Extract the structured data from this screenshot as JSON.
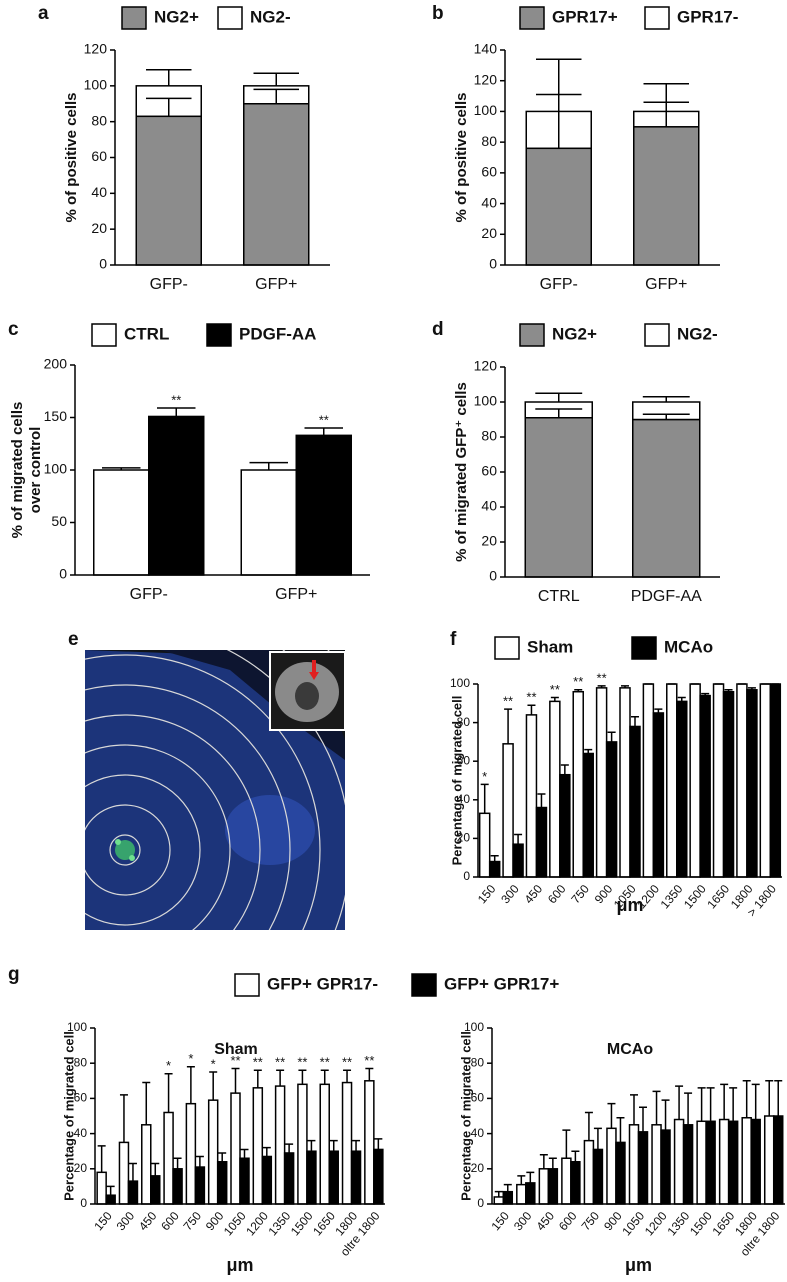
{
  "chart_data": [
    {
      "panel": "a",
      "type": "bar",
      "stacked": true,
      "categories": [
        "GFP-",
        "GFP+"
      ],
      "series": [
        {
          "name": "NG2+",
          "color": "#8c8c8c",
          "values": [
            83,
            90
          ],
          "errors": [
            10,
            8
          ]
        },
        {
          "name": "NG2-",
          "color": "#ffffff",
          "values": [
            17,
            10
          ],
          "errors": [
            9,
            7
          ]
        }
      ],
      "ylabel": "% of positive cells",
      "ylim": [
        0,
        120
      ],
      "yticks": [
        0,
        20,
        40,
        60,
        80,
        100,
        120
      ]
    },
    {
      "panel": "b",
      "type": "bar",
      "stacked": true,
      "categories": [
        "GFP-",
        "GFP+"
      ],
      "series": [
        {
          "name": "GPR17+",
          "color": "#8c8c8c",
          "values": [
            76,
            90
          ],
          "errors": [
            35,
            16
          ]
        },
        {
          "name": "GPR17-",
          "color": "#ffffff",
          "values": [
            24,
            10
          ],
          "errors": [
            34,
            18
          ]
        }
      ],
      "ylabel": "% of positive cells",
      "ylim": [
        0,
        140
      ],
      "yticks": [
        0,
        20,
        40,
        60,
        80,
        100,
        120,
        140
      ]
    },
    {
      "panel": "c",
      "type": "bar",
      "stacked": false,
      "categories": [
        "GFP-",
        "GFP+"
      ],
      "series": [
        {
          "name": "CTRL",
          "color": "#ffffff",
          "values": [
            100,
            100
          ],
          "errors": [
            2,
            7
          ]
        },
        {
          "name": "PDGF-AA",
          "color": "#000000",
          "values": [
            151,
            133
          ],
          "errors": [
            8,
            7
          ],
          "annotations": [
            "**",
            "**"
          ]
        }
      ],
      "ylabel": [
        "% of migrated cells",
        "over control"
      ],
      "ylim": [
        0,
        200
      ],
      "yticks": [
        0,
        50,
        100,
        150,
        200
      ]
    },
    {
      "panel": "d",
      "type": "bar",
      "stacked": true,
      "categories": [
        "CTRL",
        "PDGF-AA"
      ],
      "series": [
        {
          "name": "NG2+",
          "color": "#8c8c8c",
          "values": [
            91,
            90
          ],
          "errors": [
            5,
            3
          ]
        },
        {
          "name": "NG2-",
          "color": "#ffffff",
          "values": [
            9,
            10
          ],
          "errors": [
            5,
            3
          ]
        }
      ],
      "ylabel": "% of migrated GFP⁺ cells",
      "ylim": [
        0,
        120
      ],
      "yticks": [
        0,
        20,
        40,
        60,
        80,
        100,
        120
      ]
    },
    {
      "panel": "e",
      "type": "image"
    },
    {
      "panel": "f",
      "type": "bar",
      "stacked": false,
      "categories": [
        "150",
        "300",
        "450",
        "600",
        "750",
        "900",
        "1050",
        "1200",
        "1350",
        "1500",
        "1650",
        "1800",
        "> 1800"
      ],
      "series": [
        {
          "name": "Sham",
          "color": "#ffffff",
          "values": [
            33,
            69,
            84,
            91,
            96,
            98,
            98,
            100,
            100,
            100,
            100,
            100,
            100
          ],
          "errors": [
            15,
            18,
            5,
            2,
            1,
            1,
            1,
            0,
            0,
            0,
            0,
            0,
            0
          ],
          "annotations": [
            "*",
            "**",
            "**",
            "**",
            "**",
            "**",
            null,
            null,
            null,
            null,
            null,
            null,
            null
          ]
        },
        {
          "name": "MCAo",
          "color": "#000000",
          "values": [
            8,
            17,
            36,
            53,
            64,
            70,
            78,
            85,
            91,
            94,
            96,
            97,
            100
          ],
          "errors": [
            3,
            5,
            7,
            5,
            2,
            5,
            5,
            2,
            2,
            1,
            1,
            1,
            0
          ]
        }
      ],
      "ylabel": "Percentage of migrated cell",
      "xlabel": "μm",
      "ylim": [
        0,
        100
      ],
      "yticks": [
        0,
        20,
        40,
        60,
        80,
        100
      ]
    },
    {
      "panel": "g",
      "type": "bar",
      "series": [
        {
          "name": "GFP+ GPR17-",
          "color": "#ffffff"
        },
        {
          "name": "GFP+ GPR17+",
          "color": "#000000"
        }
      ],
      "subplots": [
        {
          "title": "Sham",
          "stacked": false,
          "categories": [
            "150",
            "300",
            "450",
            "600",
            "750",
            "900",
            "1050",
            "1200",
            "1350",
            "1500",
            "1650",
            "1800",
            "oltre 1800"
          ],
          "series": [
            {
              "values": [
                18,
                35,
                45,
                52,
                57,
                59,
                63,
                66,
                67,
                68,
                68,
                69,
                70
              ],
              "errors": [
                15,
                27,
                24,
                22,
                21,
                16,
                14,
                10,
                9,
                8,
                8,
                7,
                7
              ],
              "annotations": [
                null,
                null,
                null,
                "*",
                "*",
                "*",
                "**",
                "**",
                "**",
                "**",
                "**",
                "**",
                "**"
              ]
            },
            {
              "values": [
                5,
                13,
                16,
                20,
                21,
                24,
                26,
                27,
                29,
                30,
                30,
                30,
                31
              ],
              "errors": [
                5,
                10,
                7,
                6,
                6,
                5,
                5,
                5,
                5,
                6,
                6,
                6,
                6
              ]
            }
          ],
          "ylabel": "Percentage of migrated cell",
          "xlabel": "μm",
          "ylim": [
            0,
            100
          ],
          "yticks": [
            0,
            20,
            40,
            60,
            80,
            100
          ]
        },
        {
          "title": "MCAo",
          "stacked": false,
          "categories": [
            "150",
            "300",
            "450",
            "600",
            "750",
            "900",
            "1050",
            "1200",
            "1350",
            "1500",
            "1650",
            "1800",
            "oltre 1800"
          ],
          "series": [
            {
              "values": [
                4,
                11,
                20,
                26,
                36,
                43,
                45,
                45,
                48,
                47,
                48,
                49,
                50
              ],
              "errors": [
                3,
                5,
                8,
                16,
                16,
                14,
                17,
                19,
                19,
                19,
                20,
                21,
                20
              ]
            },
            {
              "values": [
                7,
                12,
                20,
                24,
                31,
                35,
                41,
                42,
                45,
                47,
                47,
                48,
                50
              ],
              "errors": [
                4,
                6,
                6,
                6,
                12,
                14,
                14,
                17,
                18,
                19,
                19,
                20,
                20
              ]
            }
          ],
          "ylabel": "Percentage of migrated cell",
          "xlabel": "μm",
          "ylim": [
            0,
            100
          ],
          "yticks": [
            0,
            20,
            40,
            60,
            80,
            100
          ]
        }
      ]
    }
  ]
}
